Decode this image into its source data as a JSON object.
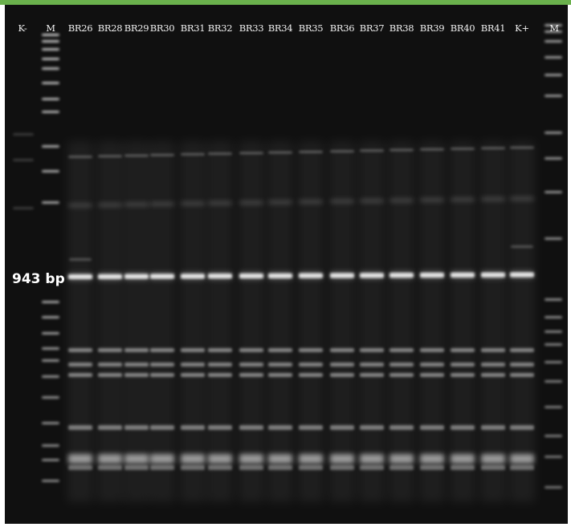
{
  "gel": {
    "lane_labels": [
      "K-",
      "M",
      "BR26",
      "BR28",
      "BR29",
      "BR30",
      "BR31",
      "BR32",
      "BR33",
      "BR34",
      "BR35",
      "BR36",
      "BR37",
      "BR38",
      "BR39",
      "BR40",
      "BR41",
      "K+",
      "M"
    ],
    "size_label": "943 bp",
    "colors": {
      "gel_background": "#101010",
      "band": "#ffffff",
      "top_border": "#6ab04c"
    }
  }
}
